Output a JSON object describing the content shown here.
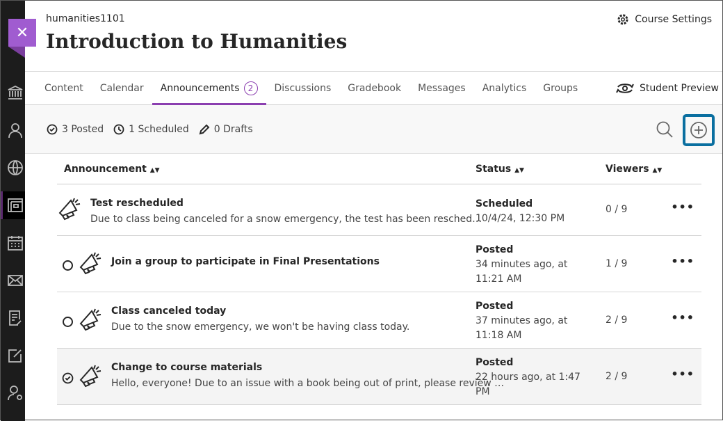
{
  "course": {
    "code": "humanities1101",
    "title": "Introduction to Humanities",
    "settings_label": "Course Settings"
  },
  "sidebar": {
    "items": [
      "institution-icon",
      "profile-icon",
      "globe-icon",
      "courses-icon",
      "calendar-icon",
      "messages-icon",
      "grades-icon",
      "assignments-icon",
      "admin-icon"
    ],
    "active": "courses-icon"
  },
  "tabs": [
    {
      "label": "Content"
    },
    {
      "label": "Calendar"
    },
    {
      "label": "Announcements",
      "badge": "2",
      "active": true
    },
    {
      "label": "Discussions"
    },
    {
      "label": "Gradebook"
    },
    {
      "label": "Messages"
    },
    {
      "label": "Analytics"
    },
    {
      "label": "Groups"
    }
  ],
  "student_preview": "Student Preview",
  "toolbar": {
    "posted": "3 Posted",
    "scheduled": "1 Scheduled",
    "drafts": "0 Drafts"
  },
  "columns": {
    "announcement": "Announcement",
    "status": "Status",
    "viewers": "Viewers"
  },
  "rows": [
    {
      "title": "Test rescheduled",
      "summary": "Due to class being canceled for a snow emergency, the test has been resched…",
      "status": "Scheduled",
      "date": "10/4/24, 12:30 PM",
      "viewers": "0 / 9",
      "mark": "none"
    },
    {
      "title": "Join a group to participate in Final Presentations",
      "summary": "",
      "status": "Posted",
      "date": "34 minutes ago, at 11:21 AM",
      "viewers": "1 / 9",
      "mark": "unread"
    },
    {
      "title": "Class canceled today",
      "summary": "Due to the snow emergency, we won't be having class today.",
      "status": "Posted",
      "date": "37 minutes ago, at 11:18 AM",
      "viewers": "2 / 9",
      "mark": "unread"
    },
    {
      "title": "Change to course materials",
      "summary": "Hello, everyone! Due to an issue with a book being out of print, please review …",
      "status": "Posted",
      "date": "22 hours ago, at 1:47 PM",
      "viewers": "2 / 9",
      "mark": "read"
    }
  ],
  "colors": {
    "accent": "#8b3fb0",
    "close": "#a05cd0",
    "focus": "#0a6fa0",
    "sidebar": "#1c1c1c"
  }
}
